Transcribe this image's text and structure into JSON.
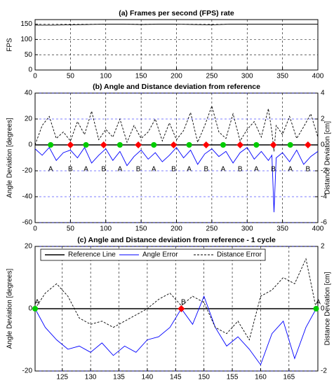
{
  "chart_data": [
    {
      "type": "line",
      "title": "(a) Frames per second (FPS) rate",
      "ylabel": "FPS",
      "xlim": [
        0,
        400
      ],
      "xticks": [
        0,
        50,
        100,
        150,
        200,
        250,
        300,
        350,
        400
      ],
      "ylim": [
        0,
        165
      ],
      "yticks": [
        0,
        50,
        100,
        150
      ],
      "grid": true,
      "series": [
        {
          "name": "FPS",
          "color": "#000000",
          "linestyle": "solid",
          "x": [
            0,
            25,
            50,
            75,
            100,
            125,
            150,
            175,
            200,
            225,
            250,
            275,
            300,
            325,
            350,
            375,
            400
          ],
          "values": [
            147,
            147,
            148,
            149,
            150,
            150,
            149,
            150,
            150,
            149,
            148,
            150,
            150,
            150,
            150,
            150,
            150
          ]
        }
      ]
    },
    {
      "type": "line",
      "title": "(b) Angle and Distance deviation from reference",
      "ylabel": "Angle Deviation [degrees]",
      "ylabel_color": "#0000ff",
      "y2label": "Distance Deviation [cm]",
      "xlim": [
        0,
        400
      ],
      "xticks": [
        0,
        50,
        100,
        150,
        200,
        250,
        300,
        350,
        400
      ],
      "ylim": [
        -60,
        40
      ],
      "yticks": [
        -60,
        -40,
        -20,
        0,
        20,
        40
      ],
      "y2lim": [
        -6,
        4
      ],
      "y2ticks": [
        -6,
        -4,
        -2,
        0,
        2,
        4
      ],
      "grid": true,
      "label_side": "below",
      "series": [
        {
          "color": "#000000",
          "linestyle": "solid",
          "x": [
            0,
            400
          ],
          "values": [
            0,
            0
          ]
        },
        {
          "color": "#0000ff",
          "linestyle": "solid",
          "x": [
            0,
            10,
            20,
            30,
            40,
            50,
            60,
            70,
            80,
            90,
            100,
            110,
            120,
            130,
            140,
            150,
            160,
            170,
            180,
            190,
            200,
            210,
            220,
            230,
            240,
            250,
            260,
            270,
            280,
            290,
            300,
            310,
            320,
            330,
            335,
            338,
            341,
            350,
            360,
            370,
            380,
            390,
            400
          ],
          "values": [
            -3,
            -8,
            -2,
            -12,
            -6,
            -4,
            -10,
            -2,
            -14,
            -8,
            -3,
            -12,
            -5,
            -16,
            -9,
            -4,
            -11,
            -6,
            -13,
            -8,
            -2,
            -10,
            -4,
            -15,
            -7,
            -3,
            -9,
            -5,
            -14,
            -6,
            -2,
            -11,
            -5,
            -12,
            -8,
            -52,
            -10,
            -6,
            -13,
            -4,
            -15,
            -9,
            -5
          ]
        },
        {
          "color": "#000000",
          "linestyle": "dashed",
          "axis": "y2",
          "x": [
            0,
            10,
            20,
            30,
            40,
            50,
            60,
            70,
            80,
            90,
            100,
            110,
            120,
            130,
            140,
            150,
            160,
            170,
            180,
            190,
            200,
            210,
            220,
            230,
            240,
            250,
            260,
            270,
            280,
            290,
            300,
            310,
            320,
            330,
            335,
            338,
            341,
            350,
            360,
            370,
            380,
            390,
            400
          ],
          "values": [
            0,
            1.5,
            2.2,
            0.5,
            1,
            0.3,
            1.8,
            0.8,
            2.6,
            0.4,
            1.2,
            0.6,
            2,
            0.2,
            1.5,
            0.5,
            1,
            2,
            0.3,
            1.7,
            0.4,
            1.1,
            2.5,
            0.2,
            1.5,
            3,
            1,
            0.5,
            2.4,
            0.3,
            1.2,
            1.8,
            0.6,
            2.8,
            1,
            -0.5,
            1.5,
            0.8,
            2.2,
            0.5,
            1.4,
            2.4,
            0.6
          ]
        }
      ],
      "points": [
        {
          "label": "A",
          "x": 22,
          "value": 0,
          "color": "#00cc00",
          "marker": "circle"
        },
        {
          "label": "B",
          "x": 50,
          "value": 0,
          "color": "#ff0000",
          "marker": "diamond"
        },
        {
          "label": "A",
          "x": 72,
          "value": 0,
          "color": "#00cc00",
          "marker": "circle"
        },
        {
          "label": "B",
          "x": 97,
          "value": 0,
          "color": "#ff0000",
          "marker": "diamond"
        },
        {
          "label": "A",
          "x": 120,
          "value": 0,
          "color": "#00cc00",
          "marker": "circle"
        },
        {
          "label": "B",
          "x": 146,
          "value": 0,
          "color": "#ff0000",
          "marker": "diamond"
        },
        {
          "label": "A",
          "x": 168,
          "value": 0,
          "color": "#00cc00",
          "marker": "circle"
        },
        {
          "label": "B",
          "x": 196,
          "value": 0,
          "color": "#ff0000",
          "marker": "diamond"
        },
        {
          "label": "A",
          "x": 218,
          "value": 0,
          "color": "#00cc00",
          "marker": "circle"
        },
        {
          "label": "B",
          "x": 242,
          "value": 0,
          "color": "#ff0000",
          "marker": "diamond"
        },
        {
          "label": "A",
          "x": 266,
          "value": 0,
          "color": "#00cc00",
          "marker": "circle"
        },
        {
          "label": "B",
          "x": 290,
          "value": 0,
          "color": "#ff0000",
          "marker": "diamond"
        },
        {
          "label": "A",
          "x": 313,
          "value": 0,
          "color": "#00cc00",
          "marker": "circle"
        },
        {
          "label": "B",
          "x": 337,
          "value": 0,
          "color": "#ff0000",
          "marker": "diamond"
        },
        {
          "label": "A",
          "x": 361,
          "value": 0,
          "color": "#00cc00",
          "marker": "circle"
        },
        {
          "label": "B",
          "x": 386,
          "value": 0,
          "color": "#ff0000",
          "marker": "diamond"
        }
      ]
    },
    {
      "type": "line",
      "title": "(c) Angle and Distance deviation from reference - 1 cycle",
      "ylabel": "Angle Deviation [degrees]",
      "ylabel_color": "#0000ff",
      "y2label": "Distance Deviation [cm]",
      "xlim": [
        120.2,
        170.1
      ],
      "xticks": [
        125,
        130,
        135,
        140,
        145,
        150,
        155,
        160,
        165
      ],
      "ylim": [
        -20,
        20
      ],
      "yticks": [
        -20,
        0,
        20
      ],
      "y2lim": [
        -2,
        2
      ],
      "y2ticks": [
        -2,
        0,
        2
      ],
      "grid": true,
      "label_side": "above",
      "legend": "upper left",
      "series": [
        {
          "name": "Reference Line",
          "color": "#000000",
          "linestyle": "solid",
          "x": [
            120.2,
            170.1
          ],
          "values": [
            0,
            0
          ]
        },
        {
          "name": "Angle Error",
          "color": "#0000ff",
          "linestyle": "solid",
          "x": [
            120.2,
            122,
            124,
            126,
            128,
            130,
            132,
            134,
            136,
            138,
            140,
            142,
            144,
            146,
            148,
            150,
            152,
            154,
            156,
            158,
            160,
            162,
            164,
            166,
            168,
            169.8
          ],
          "values": [
            0,
            -6,
            -10,
            -13,
            -12,
            -14,
            -11,
            -15,
            -12,
            -14,
            -10,
            -9,
            -6,
            0,
            -5,
            4,
            -6,
            -12,
            -9,
            -13,
            -18,
            -8,
            -4,
            -16,
            -6,
            0
          ]
        },
        {
          "name": "Distance Error",
          "color": "#000000",
          "linestyle": "dashed",
          "axis": "y2",
          "x": [
            120.2,
            122,
            124,
            126,
            128,
            130,
            132,
            134,
            136,
            138,
            140,
            142,
            144,
            146,
            148,
            150,
            152,
            154,
            156,
            158,
            160,
            162,
            164,
            166,
            168,
            169.8
          ],
          "values": [
            0,
            0.5,
            0.8,
            0.4,
            -0.3,
            -0.5,
            -0.4,
            -0.6,
            -0.4,
            -0.2,
            0,
            0.3,
            0.5,
            0.1,
            0.4,
            0.2,
            -0.6,
            -0.8,
            -0.4,
            -1,
            0.4,
            0.6,
            1,
            0.8,
            1.6,
            0
          ]
        }
      ],
      "points": [
        {
          "label": "A",
          "x": 120.2,
          "value": 0,
          "color": "#00cc00",
          "marker": "circle"
        },
        {
          "label": "B",
          "x": 146,
          "value": 0,
          "color": "#ff0000",
          "marker": "diamond"
        },
        {
          "label": "A",
          "x": 169.8,
          "value": 0,
          "color": "#00cc00",
          "marker": "circle"
        }
      ]
    }
  ]
}
